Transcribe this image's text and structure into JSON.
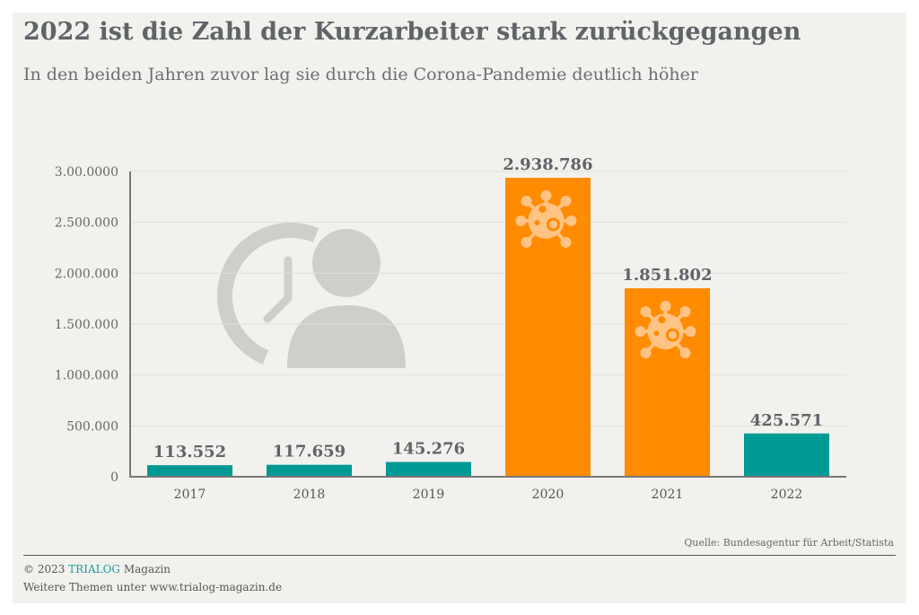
{
  "title": "2022 ist die Zahl der Kurzarbeiter stark zurückgegangen",
  "subtitle": "In den beiden Jahren zuvor lag sie durch die Corona-Pandemie deutlich höher",
  "source": "Quelle: Bundesagentur für Arbeit/Statista",
  "footer": {
    "copyright_prefix": "© 2023 ",
    "brand": "TRIALOG",
    "copyright_suffix": " Magazin",
    "more": "Weitere Themen unter www.trialog-magazin.de"
  },
  "colors": {
    "teal": "#009a94",
    "orange": "#ff8c00",
    "brand": "#1a9aa0"
  },
  "chart_data": {
    "type": "bar",
    "categories": [
      "2017",
      "2018",
      "2019",
      "2020",
      "2021",
      "2022"
    ],
    "values": [
      113552,
      117659,
      145276,
      2938786,
      1851802,
      425571
    ],
    "data_labels": [
      "113.552",
      "117.659",
      "145.276",
      "2.938.786",
      "1.851.802",
      "425.571"
    ],
    "bar_colors": [
      "#009a94",
      "#009a94",
      "#009a94",
      "#ff8c00",
      "#ff8c00",
      "#009a94"
    ],
    "icons": [
      "",
      "",
      "",
      "virus-icon",
      "virus-icon",
      ""
    ],
    "ylim": [
      0,
      3000000
    ],
    "yticks": [
      0,
      500000,
      1000000,
      1500000,
      2000000,
      2500000,
      3000000
    ],
    "ytick_labels": [
      "0",
      "500.000",
      "1.000.000",
      "1.500.000",
      "2.000.000",
      "2.500.000",
      "3.00.0000"
    ],
    "grid": true
  }
}
